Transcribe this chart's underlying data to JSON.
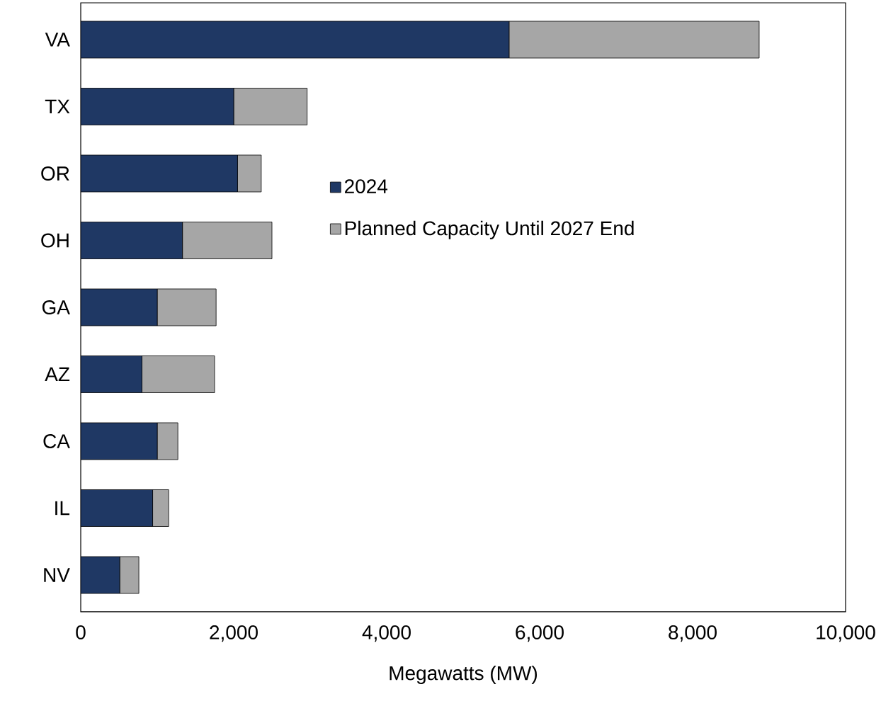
{
  "chart_data": {
    "type": "bar",
    "orientation": "horizontal",
    "stacked": true,
    "categories": [
      "VA",
      "TX",
      "OR",
      "OH",
      "GA",
      "AZ",
      "CA",
      "IL",
      "NV"
    ],
    "series": [
      {
        "name": "2024",
        "color": "#1f3864",
        "values": [
          5600,
          2000,
          2050,
          1330,
          1000,
          800,
          1000,
          940,
          510
        ]
      },
      {
        "name": "Planned Capacity Until 2027 End",
        "color": "#a6a6a6",
        "values": [
          3270,
          960,
          310,
          1170,
          770,
          950,
          270,
          210,
          250
        ]
      }
    ],
    "xlim": [
      0,
      10000
    ],
    "xticks": [
      {
        "value": 0,
        "label": "0"
      },
      {
        "value": 2000,
        "label": "2,000"
      },
      {
        "value": 4000,
        "label": "4,000"
      },
      {
        "value": 6000,
        "label": "6,000"
      },
      {
        "value": 8000,
        "label": "8,000"
      },
      {
        "value": 10000,
        "label": "10,000"
      }
    ],
    "xlabel": "Megawatts (MW)",
    "legend": "right",
    "grid": false
  }
}
